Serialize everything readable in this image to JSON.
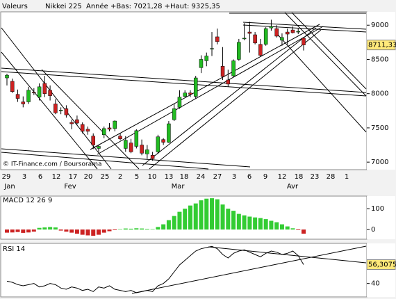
{
  "chart_data": [
    {
      "type": "candlestick",
      "label": "Valeurs",
      "title": "Nikkei 225",
      "subtitle": "Année +Bas: 7021,28 +Haut: 9325,35",
      "source": "© IT-Finance.com / Boursorama",
      "x_labels": [
        "29",
        "3",
        "6",
        "12",
        "17",
        "20",
        "25",
        "2",
        "5",
        "10",
        "13",
        "18",
        "24",
        "27",
        "3",
        "6",
        "9",
        "12",
        "18",
        "23",
        "28",
        "1"
      ],
      "month_labels": [
        "Jan",
        "Fev",
        "Mar",
        "Avr"
      ],
      "open": [
        8230,
        8180,
        7990,
        7880,
        7880,
        8020,
        7950,
        8150,
        8050,
        7850,
        7750,
        7780,
        7580,
        7620,
        7550,
        7480,
        7380,
        7200,
        7400,
        7500,
        7490,
        7380,
        7200,
        7280,
        7230,
        7250,
        7120,
        7100,
        7150,
        7330,
        7290,
        7620,
        7800,
        7960,
        8010,
        7960,
        8380,
        8480,
        8650,
        8830,
        8400,
        8200,
        8260,
        8500,
        8800,
        8900,
        8860,
        8720,
        8720,
        8960,
        8950,
        8780,
        8900,
        8930,
        8900,
        8810
      ],
      "high": [
        8290,
        8220,
        8060,
        7960,
        8100,
        8080,
        8150,
        8260,
        8120,
        7920,
        7800,
        7830,
        7620,
        7680,
        7580,
        7520,
        7420,
        7250,
        7520,
        7570,
        7610,
        7420,
        7380,
        7340,
        7480,
        7330,
        7250,
        7150,
        7400,
        7350,
        7600,
        7850,
        8050,
        8050,
        8050,
        8260,
        8560,
        8600,
        8900,
        8950,
        8680,
        8350,
        8500,
        8800,
        9030,
        9050,
        8900,
        8800,
        8970,
        9080,
        9000,
        8880,
        8950,
        8980,
        8950,
        8820
      ],
      "low": [
        8120,
        8010,
        7880,
        7800,
        7850,
        7980,
        7900,
        7950,
        7900,
        7700,
        7700,
        7650,
        7480,
        7550,
        7420,
        7400,
        7190,
        7150,
        7350,
        7450,
        7450,
        7320,
        7150,
        7130,
        7200,
        7100,
        7050,
        7020,
        7120,
        7250,
        7280,
        7600,
        7780,
        7950,
        7950,
        7930,
        8300,
        8400,
        8550,
        8720,
        8200,
        8100,
        8240,
        8480,
        8780,
        8600,
        8720,
        8540,
        8700,
        8920,
        8820,
        8700,
        8720,
        8880,
        8870,
        8630
      ],
      "close": [
        8270,
        8030,
        7930,
        7850,
        8050,
        8010,
        8100,
        8000,
        7970,
        7720,
        7760,
        7690,
        7560,
        7570,
        7450,
        7450,
        7250,
        7230,
        7490,
        7480,
        7600,
        7340,
        7320,
        7150,
        7460,
        7130,
        7180,
        7050,
        7370,
        7290,
        7560,
        7780,
        7950,
        8010,
        7990,
        8230,
        8500,
        8550,
        8660,
        8760,
        8250,
        8140,
        8480,
        8750,
        8810,
        8880,
        8740,
        8560,
        8950,
        8980,
        8840,
        8820,
        8870,
        8890,
        8910,
        8711.33
      ],
      "last_label": "8711,33",
      "up_color": "#22bb22",
      "down_color": "#cc2222",
      "ylim": [
        6900,
        9185
      ],
      "yticks": [
        7000,
        7500,
        8000,
        8500,
        9000
      ]
    },
    {
      "type": "bar",
      "title": "MACD 12 26 9",
      "values": [
        -15,
        -14,
        -12,
        -16,
        -14,
        -10,
        8,
        10,
        12,
        10,
        -5,
        -10,
        -15,
        -20,
        -25,
        -28,
        -30,
        -25,
        -15,
        -8,
        -3,
        2,
        5,
        4,
        6,
        5,
        3,
        2,
        12,
        25,
        45,
        65,
        85,
        100,
        115,
        125,
        140,
        148,
        150,
        145,
        120,
        100,
        90,
        75,
        68,
        62,
        58,
        55,
        50,
        42,
        35,
        25,
        15,
        6,
        -3,
        -20
      ],
      "pos_color": "#33cc33",
      "neg_color": "#cc2222",
      "ylim": [
        -43,
        157
      ],
      "yticks": [
        0,
        100
      ]
    },
    {
      "type": "line",
      "title": "RSI 14",
      "values": [
        42,
        41,
        39,
        38,
        39,
        40,
        37,
        38,
        40,
        39,
        36,
        35,
        37,
        36,
        34,
        35,
        33,
        37,
        36,
        38,
        35,
        34,
        33,
        34,
        32,
        33,
        34,
        33,
        38,
        40,
        44,
        50,
        56,
        60,
        64,
        68,
        70,
        71,
        72,
        70,
        65,
        62,
        66,
        68,
        69,
        67,
        65,
        63,
        66,
        68,
        67,
        65,
        66,
        68,
        64,
        56.3075
      ],
      "last_label": "56,3075",
      "color": "#000000",
      "ylim": [
        29,
        74
      ],
      "yticks": [
        40
      ]
    }
  ]
}
